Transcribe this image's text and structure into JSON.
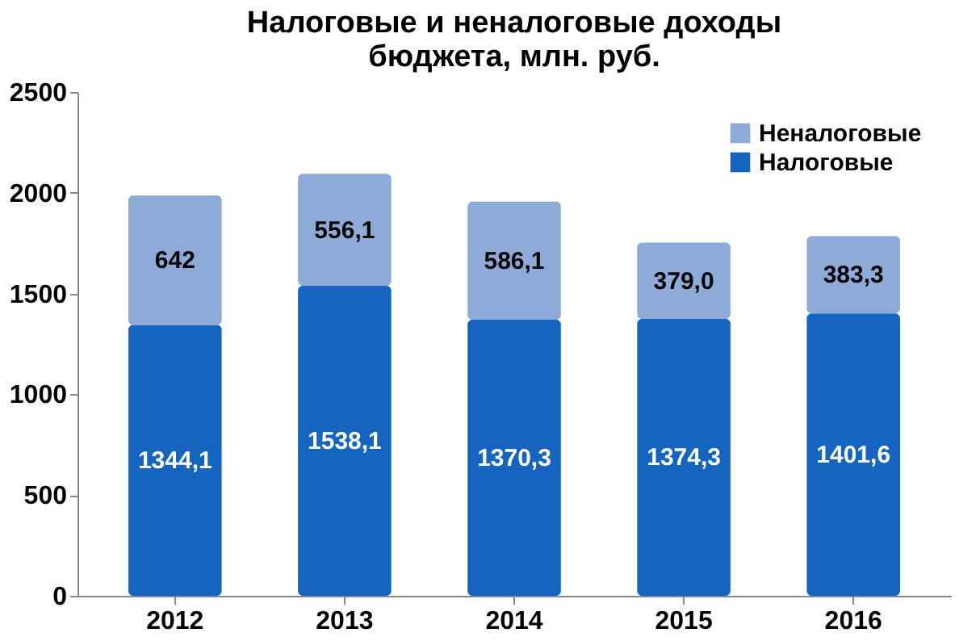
{
  "chart_data": {
    "type": "bar",
    "title": [
      "Налоговые и неналоговые доходы",
      "бюджета, млн. руб."
    ],
    "categories": [
      "2012",
      "2013",
      "2014",
      "2015",
      "2016"
    ],
    "stacked": true,
    "series": [
      {
        "name": "Налоговые",
        "color": "#1565c0",
        "values": [
          1344.1,
          1538.1,
          1370.3,
          1374.3,
          1401.6
        ],
        "value_labels": [
          "1344,1",
          "1538,1",
          "1370,3",
          "1374,3",
          "1401,6"
        ]
      },
      {
        "name": "Неналоговые",
        "color": "#8eaad8",
        "values": [
          642,
          556.1,
          586.1,
          379.0,
          383.3
        ],
        "value_labels": [
          "642",
          "556,1",
          "586,1",
          "379,0",
          "383,3"
        ]
      }
    ],
    "ylim": [
      0,
      2500
    ],
    "yticks": [
      0,
      500,
      1000,
      1500,
      2000,
      2500
    ],
    "grid": false,
    "legend": "top right"
  }
}
